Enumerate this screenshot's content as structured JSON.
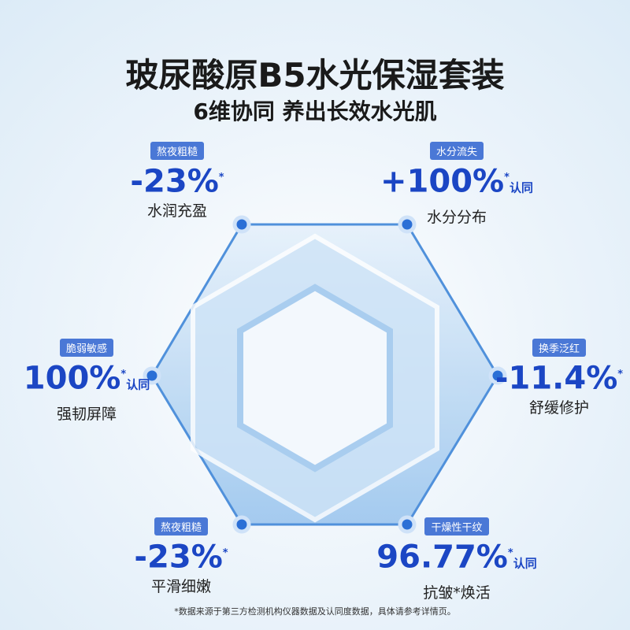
{
  "header": {
    "title": "玻尿酸原B5水光保湿套装",
    "subtitle": "6维协同 养出长效水光肌"
  },
  "claims": [
    {
      "tag": "熬夜粗糙",
      "value": "-23%",
      "mark": "*",
      "desc": "水润充盈"
    },
    {
      "tag": "水分流失",
      "value": "+100%",
      "mark": "*",
      "suffix": "认同",
      "desc": "水分分布"
    },
    {
      "tag": "脆弱敏感",
      "value": "100%",
      "mark": "*",
      "suffix": "认同",
      "desc": "强韧屏障"
    },
    {
      "tag": "换季泛红",
      "value": "-11.4%",
      "mark": "*",
      "desc": "舒缓修护"
    },
    {
      "tag": "熬夜粗糙",
      "value": "-23%",
      "mark": "*",
      "desc": "平滑细嫩"
    },
    {
      "tag": "干燥性干纹",
      "value": "96.77%",
      "mark": "*",
      "suffix": "认同",
      "desc": "抗皱*焕活"
    }
  ],
  "footnote": "*数据来源于第三方检测机构仪器数据及认同度数据，具体请参考详情页。"
}
